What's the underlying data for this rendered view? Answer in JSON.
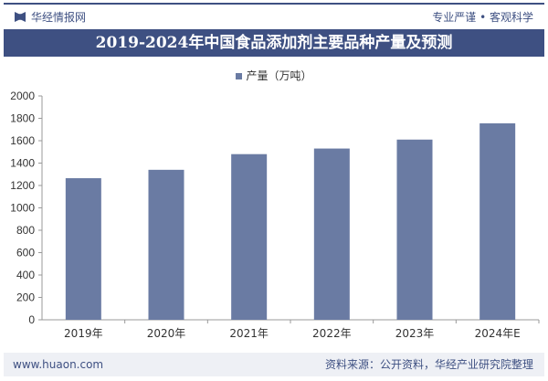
{
  "header": {
    "brand": "华经情报网",
    "slogan": "专业严谨 • 客观科学",
    "title": "2019-2024年中国食品添加剂主要品种产量及预测"
  },
  "footer": {
    "website": "www.huaon.com",
    "source": "资料来源：公开资料，华经产业研究院整理"
  },
  "chart_data": {
    "type": "bar",
    "title": "2019-2024年中国食品添加剂主要品种产量及预测",
    "categories": [
      "2019年",
      "2020年",
      "2021年",
      "2022年",
      "2023年",
      "2024年E"
    ],
    "series": [
      {
        "name": "产量（万吨）",
        "values": [
          1265,
          1340,
          1480,
          1530,
          1610,
          1755
        ]
      }
    ],
    "ylim": [
      0,
      2000
    ],
    "yticks": [
      0,
      200,
      400,
      600,
      800,
      1000,
      1200,
      1400,
      1600,
      1800,
      2000
    ],
    "legend": "top",
    "grid": false,
    "color": "#6a7ba3"
  }
}
